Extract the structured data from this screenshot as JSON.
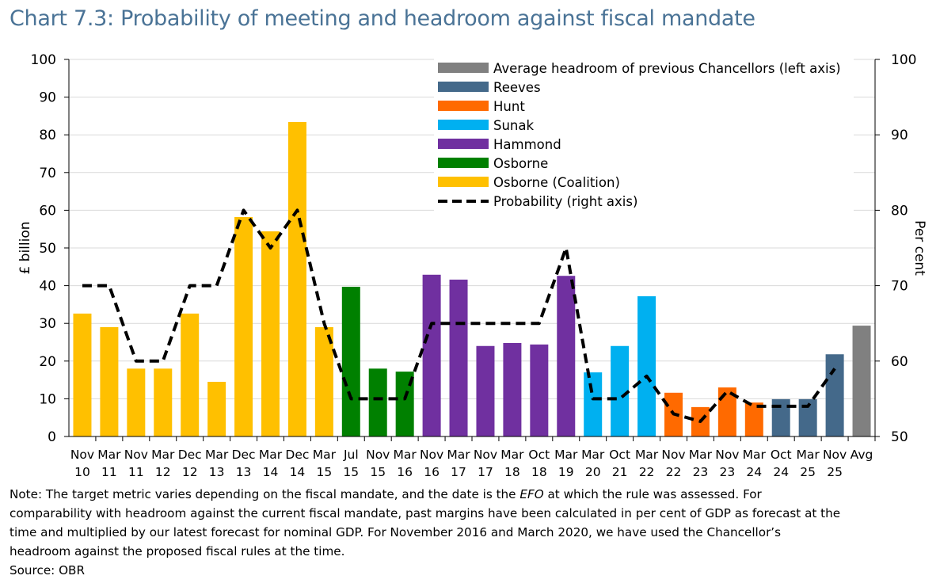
{
  "title": "Chart 7.3: Probability of meeting and headroom against fiscal mandate",
  "note": {
    "line1_pre": "Note: The target metric varies depending on the fiscal mandate, and the date is the ",
    "line1_em": "EFO",
    "line1_post": " at which the rule was assessed. For",
    "line2": "comparability with headroom against the current fiscal mandate, past margins have been calculated in per cent of GDP as forecast at the",
    "line3": "time and multiplied by our latest forecast for nominal GDP. For November 2016 and March 2020, we have used the Chancellor’s",
    "line4": "headroom against the proposed fiscal rules at the time.",
    "source": "Source: OBR"
  },
  "chart_data": {
    "type": "bar",
    "ylabel": "£ billion",
    "y2label": "Per cent",
    "ylim": [
      0,
      100
    ],
    "y2lim": [
      50,
      100
    ],
    "yticks": [
      0,
      10,
      20,
      30,
      40,
      50,
      60,
      70,
      80,
      90,
      100
    ],
    "y2ticks": [
      50,
      60,
      70,
      80,
      90,
      100
    ],
    "grid": true,
    "legend_position": "top-right",
    "categories": [
      "Nov 10",
      "Mar 11",
      "Nov 11",
      "Mar 12",
      "Dec 12",
      "Mar 13",
      "Dec 13",
      "Mar 14",
      "Dec 14",
      "Mar 15",
      "Jul 15",
      "Nov 15",
      "Mar 16",
      "Nov 16",
      "Mar 17",
      "Nov 17",
      "Mar 18",
      "Oct 18",
      "Mar 19",
      "Mar 20",
      "Oct 21",
      "Mar 22",
      "Nov 22",
      "Mar 23",
      "Nov 23",
      "Mar 24",
      "Oct 24",
      "Mar 25",
      "Nov 25",
      "Avg"
    ],
    "headroom": [
      32.6,
      29,
      18,
      18,
      32.6,
      14.5,
      58.2,
      54.4,
      83.4,
      29,
      39.7,
      18,
      17.2,
      42.9,
      41.6,
      24,
      24.8,
      24.4,
      42.6,
      17,
      24,
      37.2,
      11.6,
      7.8,
      13,
      9,
      9.9,
      9.9,
      21.8,
      29.4
    ],
    "chancellor": [
      "Osborne (Coalition)",
      "Osborne (Coalition)",
      "Osborne (Coalition)",
      "Osborne (Coalition)",
      "Osborne (Coalition)",
      "Osborne (Coalition)",
      "Osborne (Coalition)",
      "Osborne (Coalition)",
      "Osborne (Coalition)",
      "Osborne (Coalition)",
      "Osborne",
      "Osborne",
      "Osborne",
      "Hammond",
      "Hammond",
      "Hammond",
      "Hammond",
      "Hammond",
      "Hammond",
      "Sunak",
      "Sunak",
      "Sunak",
      "Hunt",
      "Hunt",
      "Hunt",
      "Hunt",
      "Reeves",
      "Reeves",
      "Reeves",
      "Average headroom of previous Chancellors (left axis)"
    ],
    "probability": [
      70,
      70,
      60,
      60,
      70,
      70,
      80,
      75,
      80,
      65,
      55,
      55,
      55,
      65,
      65,
      65,
      65,
      65,
      75,
      55,
      55,
      58,
      53,
      52,
      56,
      54,
      54,
      54,
      59,
      null
    ],
    "legend": [
      {
        "name": "Average headroom of previous Chancellors (left axis)",
        "color": "#808080",
        "kind": "bar"
      },
      {
        "name": "Reeves",
        "color": "#44698a",
        "kind": "bar"
      },
      {
        "name": "Hunt",
        "color": "#ff6a00",
        "kind": "bar"
      },
      {
        "name": "Sunak",
        "color": "#00b0f0",
        "kind": "bar"
      },
      {
        "name": "Hammond",
        "color": "#7030a0",
        "kind": "bar"
      },
      {
        "name": "Osborne",
        "color": "#008000",
        "kind": "bar"
      },
      {
        "name": "Osborne (Coalition)",
        "color": "#ffc000",
        "kind": "bar"
      },
      {
        "name": "Probability (right axis)",
        "color": "#000000",
        "kind": "line"
      }
    ]
  }
}
